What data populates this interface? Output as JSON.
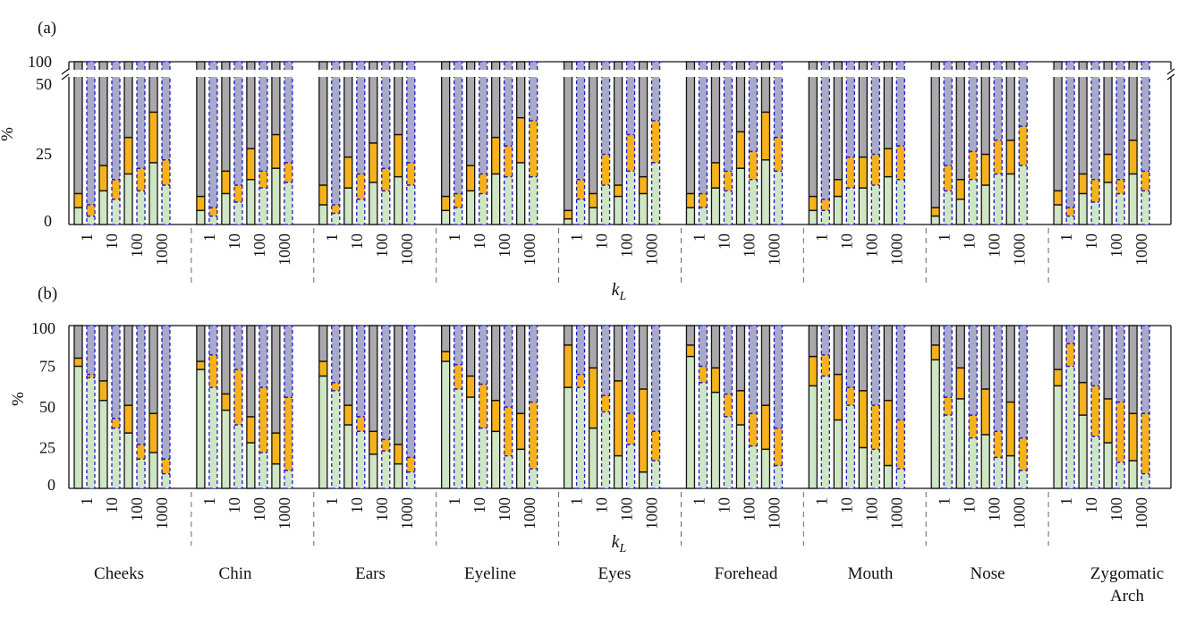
{
  "chart_data": [
    {
      "type": "bar",
      "panel_label": "(a)",
      "ylabel": "%",
      "xlabel": "k",
      "xlabel_sub": "L",
      "axis_break": true,
      "yticks": [
        "0",
        "25",
        "50",
        "100"
      ],
      "groups": [
        "Cheeks",
        "Chin",
        "Ears",
        "Eyeline",
        "Eyes",
        "Forehead",
        "Mouth",
        "Nose",
        "Zygomatic Arch"
      ],
      "kL": [
        "1",
        "10",
        "100",
        "1000"
      ],
      "series": [
        "green",
        "orange",
        "gray"
      ],
      "values": [
        [
          [
            [
              6,
              11
            ],
            [
              3,
              7
            ]
          ],
          [
            [
              12,
              21
            ],
            [
              9,
              16
            ]
          ],
          [
            [
              18,
              31
            ],
            [
              12,
              20
            ]
          ],
          [
            [
              22,
              40
            ],
            [
              14,
              23
            ]
          ]
        ],
        [
          [
            [
              5,
              10
            ],
            [
              3,
              6
            ]
          ],
          [
            [
              11,
              19
            ],
            [
              8,
              14
            ]
          ],
          [
            [
              16,
              27
            ],
            [
              13,
              19
            ]
          ],
          [
            [
              20,
              32
            ],
            [
              15,
              22
            ]
          ]
        ],
        [
          [
            [
              7,
              14
            ],
            [
              4,
              7
            ]
          ],
          [
            [
              13,
              24
            ],
            [
              9,
              18
            ]
          ],
          [
            [
              15,
              29
            ],
            [
              12,
              20
            ]
          ],
          [
            [
              17,
              32
            ],
            [
              14,
              22
            ]
          ]
        ],
        [
          [
            [
              5,
              10
            ],
            [
              6,
              11
            ]
          ],
          [
            [
              12,
              21
            ],
            [
              11,
              18
            ]
          ],
          [
            [
              18,
              31
            ],
            [
              17,
              28
            ]
          ],
          [
            [
              22,
              38
            ],
            [
              17,
              37
            ]
          ]
        ],
        [
          [
            [
              2,
              5
            ],
            [
              9,
              16
            ]
          ],
          [
            [
              6,
              11
            ],
            [
              14,
              25
            ]
          ],
          [
            [
              10,
              14
            ],
            [
              19,
              32
            ]
          ],
          [
            [
              11,
              17
            ],
            [
              22,
              37
            ]
          ]
        ],
        [
          [
            [
              6,
              11
            ],
            [
              6,
              11
            ]
          ],
          [
            [
              13,
              22
            ],
            [
              12,
              19
            ]
          ],
          [
            [
              20,
              33
            ],
            [
              16,
              26
            ]
          ],
          [
            [
              23,
              40
            ],
            [
              19,
              31
            ]
          ]
        ],
        [
          [
            [
              5,
              10
            ],
            [
              5,
              9
            ]
          ],
          [
            [
              10,
              16
            ],
            [
              13,
              24
            ]
          ],
          [
            [
              13,
              24
            ],
            [
              14,
              25
            ]
          ],
          [
            [
              17,
              27
            ],
            [
              16,
              28
            ]
          ]
        ],
        [
          [
            [
              3,
              6
            ],
            [
              12,
              21
            ]
          ],
          [
            [
              9,
              16
            ],
            [
              16,
              26
            ]
          ],
          [
            [
              14,
              25
            ],
            [
              18,
              30
            ]
          ],
          [
            [
              18,
              30
            ],
            [
              21,
              35
            ]
          ]
        ],
        [
          [
            [
              7,
              12
            ],
            [
              3,
              6
            ]
          ],
          [
            [
              11,
              18
            ],
            [
              8,
              16
            ]
          ],
          [
            [
              15,
              25
            ],
            [
              11,
              16
            ]
          ],
          [
            [
              18,
              30
            ],
            [
              12,
              19
            ]
          ]
        ]
      ]
    },
    {
      "type": "bar",
      "panel_label": "(b)",
      "ylabel": "%",
      "xlabel": "k",
      "xlabel_sub": "L",
      "yticks": [
        "0",
        "25",
        "50",
        "75",
        "100"
      ],
      "groups": [
        "Cheeks",
        "Chin",
        "Ears",
        "Eyeline",
        "Eyes",
        "Forehead",
        "Mouth",
        "Nose",
        "Zygomatic Arch"
      ],
      "kL": [
        "1",
        "10",
        "100",
        "1000"
      ],
      "series": [
        "green",
        "orange",
        "gray"
      ],
      "values": [
        [
          [
            [
              75,
              80
            ],
            [
              68,
              70
            ]
          ],
          [
            [
              54,
              66
            ],
            [
              37,
              43
            ]
          ],
          [
            [
              34,
              51
            ],
            [
              18,
              27
            ]
          ],
          [
            [
              22,
              46
            ],
            [
              9,
              18
            ]
          ]
        ],
        [
          [
            [
              73,
              78
            ],
            [
              62,
              82
            ]
          ],
          [
            [
              48,
              58
            ],
            [
              39,
              73
            ]
          ],
          [
            [
              28,
              44
            ],
            [
              22,
              62
            ]
          ],
          [
            [
              15,
              34
            ],
            [
              11,
              56
            ]
          ]
        ],
        [
          [
            [
              69,
              78
            ],
            [
              60,
              65
            ]
          ],
          [
            [
              39,
              51
            ],
            [
              35,
              44
            ]
          ],
          [
            [
              21,
              35
            ],
            [
              23,
              30
            ]
          ],
          [
            [
              15,
              27
            ],
            [
              10,
              19
            ]
          ]
        ],
        [
          [
            [
              78,
              84
            ],
            [
              61,
              76
            ]
          ],
          [
            [
              56,
              69
            ],
            [
              37,
              64
            ]
          ],
          [
            [
              35,
              54
            ],
            [
              20,
              50
            ]
          ],
          [
            [
              24,
              46
            ],
            [
              12,
              53
            ]
          ]
        ],
        [
          [
            [
              62,
              88
            ],
            [
              62,
              70
            ]
          ],
          [
            [
              37,
              74
            ],
            [
              47,
              57
            ]
          ],
          [
            [
              20,
              66
            ],
            [
              27,
              46
            ]
          ],
          [
            [
              10,
              61
            ],
            [
              17,
              35
            ]
          ]
        ],
        [
          [
            [
              81,
              88
            ],
            [
              65,
              75
            ]
          ],
          [
            [
              59,
              74
            ],
            [
              44,
              58
            ]
          ],
          [
            [
              39,
              60
            ],
            [
              26,
              46
            ]
          ],
          [
            [
              24,
              51
            ],
            [
              14,
              37
            ]
          ]
        ],
        [
          [
            [
              63,
              81
            ],
            [
              69,
              82
            ]
          ],
          [
            [
              42,
              70
            ],
            [
              51,
              62
            ]
          ],
          [
            [
              25,
              60
            ],
            [
              24,
              51
            ]
          ],
          [
            [
              14,
              54
            ],
            [
              12,
              42
            ]
          ]
        ],
        [
          [
            [
              79,
              88
            ],
            [
              45,
              56
            ]
          ],
          [
            [
              55,
              74
            ],
            [
              31,
              45
            ]
          ],
          [
            [
              33,
              61
            ],
            [
              19,
              35
            ]
          ],
          [
            [
              20,
              53
            ],
            [
              11,
              31
            ]
          ]
        ],
        [
          [
            [
              63,
              73
            ],
            [
              75,
              89
            ]
          ],
          [
            [
              45,
              65
            ],
            [
              32,
              63
            ]
          ],
          [
            [
              28,
              55
            ],
            [
              16,
              53
            ]
          ],
          [
            [
              17,
              46
            ],
            [
              9,
              46
            ]
          ]
        ]
      ]
    }
  ],
  "group_labels": [
    {
      "line1": "Cheeks",
      "line2": ""
    },
    {
      "line1": "Chin",
      "line2": ""
    },
    {
      "line1": "Ears",
      "line2": ""
    },
    {
      "line1": "Eyeline",
      "line2": ""
    },
    {
      "line1": "Eyes",
      "line2": ""
    },
    {
      "line1": "Forehead",
      "line2": ""
    },
    {
      "line1": "Mouth",
      "line2": ""
    },
    {
      "line1": "Nose",
      "line2": ""
    },
    {
      "line1": "Zygomatic",
      "line2": "Arch"
    }
  ],
  "colors": {
    "green": "#cfe6c5",
    "orange": "#f6b21c",
    "gray": "#a9a9ad",
    "lavender": "#a9a9c9",
    "blue_outline": "#1c1cc8",
    "black_outline": "#111111"
  }
}
